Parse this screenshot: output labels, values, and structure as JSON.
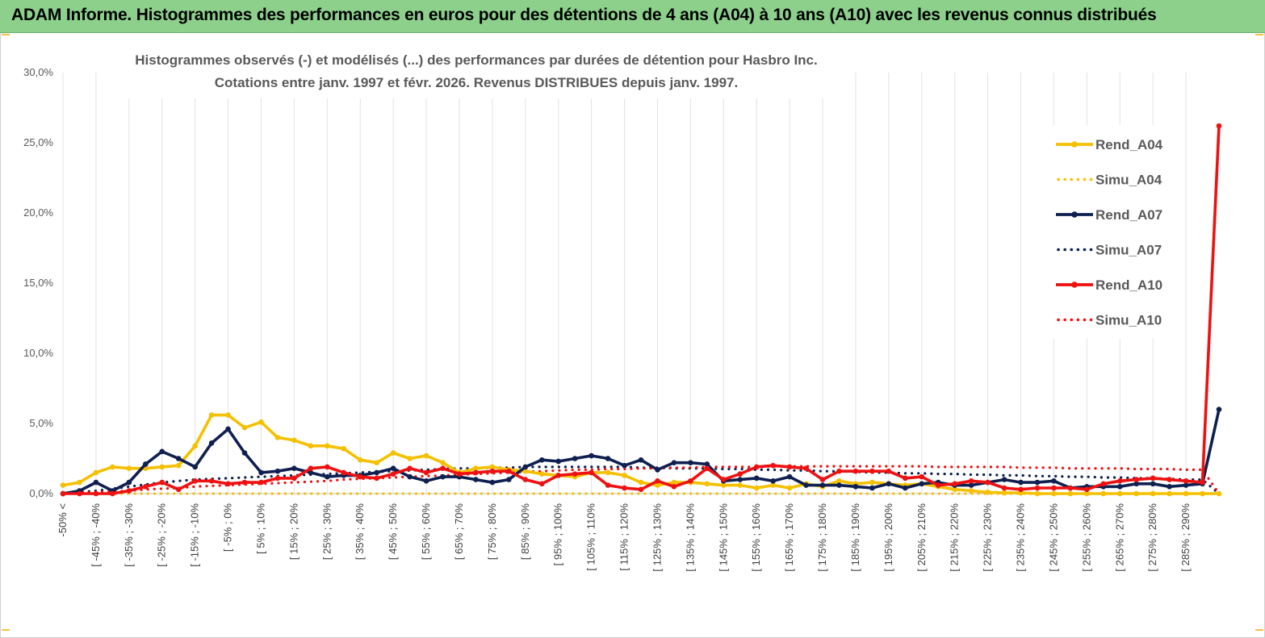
{
  "banner": {
    "title": "ADAM Informe. Histogrammes des performances en euros pour des détentions de 4 ans (A04) à 10 ans (A10) avec les revenus connus distribués"
  },
  "chart_data": {
    "type": "line",
    "title_lines": [
      "Histogrammes observés (-) et modélisés (...)  des performances par durées de détention pour Hasbro Inc.",
      "Cotations entre janv. 1997 et févr. 2026. Revenus DISTRIBUES depuis janv. 1997."
    ],
    "xlabel": "",
    "ylabel": "",
    "ylim": [
      0,
      30
    ],
    "y_ticks": [
      "0,0%",
      "5,0%",
      "10,0%",
      "15,0%",
      "20,0%",
      "25,0%",
      "30,0%"
    ],
    "grid": "vertical",
    "legend_position": "right",
    "x_labels_shown": [
      "-50% <",
      "[ -45% ; -40%",
      "[ -35% ; -30%",
      "[ -25% ; -20%",
      "[ -15% ; -10%",
      "[ -5% ; 0%",
      "[ 5% ; 10%",
      "[ 15% ; 20%",
      "[ 25% ; 30%",
      "[ 35% ; 40%",
      "[ 45% ; 50%",
      "[ 55% ; 60%",
      "[ 65% ; 70%",
      "[ 75% ; 80%",
      "[ 85% ; 90%",
      "[ 95% ; 100%",
      "[ 105% ; 110%",
      "[ 115% ; 120%",
      "[ 125% ; 130%",
      "[ 135% ; 140%",
      "[ 145% ; 150%",
      "[ 155% ; 160%",
      "[ 165% ; 170%",
      "[ 175% ; 180%",
      "[ 185% ; 190%",
      "[ 195% ; 200%",
      "[ 205% ; 210%",
      "[ 215% ; 220%",
      "[ 225% ; 230%",
      "[ 235% ; 240%",
      "[ 245% ; 250%",
      "[ 255% ; 260%",
      "[ 265% ; 270%",
      "[ 275% ; 280%",
      "[ 285% ; 290%"
    ],
    "series": [
      {
        "name": "Rend_A04",
        "color": "#f5c000",
        "style": "solid",
        "values": [
          0.6,
          0.8,
          1.5,
          1.9,
          1.8,
          1.8,
          1.9,
          2.0,
          3.4,
          5.6,
          5.6,
          4.7,
          5.1,
          4.0,
          3.8,
          3.4,
          3.4,
          3.2,
          2.4,
          2.2,
          2.9,
          2.5,
          2.7,
          2.2,
          1.5,
          1.8,
          1.9,
          1.7,
          1.6,
          1.4,
          1.3,
          1.2,
          1.5,
          1.5,
          1.3,
          0.8,
          0.6,
          0.8,
          0.8,
          0.7,
          0.6,
          0.6,
          0.4,
          0.6,
          0.4,
          0.7,
          0.5,
          0.9,
          0.7,
          0.8,
          0.7,
          0.6,
          0.7,
          0.5,
          0.3,
          0.2,
          0.1,
          0.05,
          0.05,
          0.0,
          0.0,
          0.0,
          0.0,
          0.0,
          0.0,
          0.0,
          0.0,
          0.0,
          0.0,
          0.0,
          0.0
        ]
      },
      {
        "name": "Simu_A04",
        "color": "#f5c000",
        "style": "dotted",
        "values": [
          0.0,
          0.0,
          0.0,
          0.0,
          0.0,
          0.0,
          0.0,
          0.0,
          0.0,
          0.0,
          0.0,
          0.0,
          0.0,
          0.0,
          0.0,
          0.0,
          0.0,
          0.0,
          0.0,
          0.0,
          0.0,
          0.0,
          0.0,
          0.0,
          0.0,
          0.0,
          0.0,
          0.0,
          0.0,
          0.0,
          0.0,
          0.0,
          0.0,
          0.0,
          0.0,
          0.0,
          0.0,
          0.0,
          0.0,
          0.0,
          0.0,
          0.0,
          0.0,
          0.0,
          0.0,
          0.0,
          0.0,
          0.0,
          0.0,
          0.0,
          0.0,
          0.0,
          0.0,
          0.0,
          0.0,
          0.0,
          0.0,
          0.0,
          0.0,
          0.0,
          0.0,
          0.0,
          0.0,
          0.0,
          0.0,
          0.0,
          0.0,
          0.0,
          0.0,
          0.0,
          0.0
        ]
      },
      {
        "name": "Rend_A07",
        "color": "#0f2050",
        "style": "solid",
        "values": [
          0.0,
          0.2,
          0.8,
          0.2,
          0.8,
          2.1,
          3.0,
          2.5,
          1.9,
          3.6,
          4.6,
          2.9,
          1.5,
          1.6,
          1.8,
          1.5,
          1.2,
          1.3,
          1.3,
          1.5,
          1.8,
          1.2,
          0.9,
          1.2,
          1.2,
          1.0,
          0.8,
          1.0,
          1.9,
          2.4,
          2.3,
          2.5,
          2.7,
          2.5,
          2.0,
          2.4,
          1.7,
          2.2,
          2.2,
          2.1,
          0.9,
          1.0,
          1.1,
          0.9,
          1.2,
          0.6,
          0.6,
          0.6,
          0.5,
          0.4,
          0.7,
          0.4,
          0.7,
          0.8,
          0.6,
          0.6,
          0.8,
          1.0,
          0.8,
          0.8,
          0.9,
          0.4,
          0.5,
          0.5,
          0.5,
          0.7,
          0.7,
          0.5,
          0.6,
          0.7,
          6.0
        ]
      },
      {
        "name": "Simu_A07",
        "color": "#0f2050",
        "style": "dotted",
        "values": [
          0.0,
          0.1,
          0.2,
          0.35,
          0.5,
          0.65,
          0.8,
          0.9,
          1.0,
          1.05,
          1.1,
          1.15,
          1.2,
          1.25,
          1.3,
          1.35,
          1.4,
          1.45,
          1.5,
          1.55,
          1.6,
          1.65,
          1.7,
          1.75,
          1.8,
          1.8,
          1.85,
          1.85,
          1.9,
          1.9,
          1.9,
          1.9,
          1.9,
          1.9,
          1.9,
          1.85,
          1.85,
          1.8,
          1.8,
          1.8,
          1.75,
          1.75,
          1.7,
          1.7,
          1.65,
          1.65,
          1.6,
          1.6,
          1.55,
          1.5,
          1.5,
          1.45,
          1.45,
          1.4,
          1.4,
          1.35,
          1.35,
          1.3,
          1.3,
          1.25,
          1.25,
          1.2,
          1.2,
          1.15,
          1.15,
          1.1,
          1.1,
          1.05,
          1.0,
          1.0,
          0.0
        ]
      },
      {
        "name": "Rend_A10",
        "color": "#ee1111",
        "style": "solid",
        "values": [
          0.0,
          0.0,
          0.0,
          0.0,
          0.2,
          0.5,
          0.8,
          0.3,
          0.9,
          0.9,
          0.7,
          0.8,
          0.8,
          1.1,
          1.1,
          1.8,
          1.9,
          1.5,
          1.2,
          1.1,
          1.4,
          1.8,
          1.5,
          1.8,
          1.4,
          1.5,
          1.6,
          1.6,
          1.0,
          0.7,
          1.3,
          1.4,
          1.5,
          0.6,
          0.4,
          0.3,
          0.9,
          0.5,
          0.9,
          1.8,
          1.0,
          1.4,
          1.9,
          2.0,
          1.9,
          1.8,
          1.0,
          1.6,
          1.6,
          1.6,
          1.6,
          1.1,
          1.2,
          0.6,
          0.7,
          0.9,
          0.8,
          0.4,
          0.3,
          0.4,
          0.4,
          0.4,
          0.3,
          0.7,
          0.9,
          1.0,
          1.1,
          1.0,
          0.9,
          0.8,
          26.2
        ]
      },
      {
        "name": "Simu_A10",
        "color": "#ee1111",
        "style": "dotted",
        "values": [
          0.0,
          0.05,
          0.1,
          0.15,
          0.2,
          0.3,
          0.35,
          0.4,
          0.5,
          0.55,
          0.6,
          0.65,
          0.7,
          0.75,
          0.8,
          0.85,
          0.9,
          1.0,
          1.05,
          1.1,
          1.15,
          1.2,
          1.25,
          1.3,
          1.35,
          1.4,
          1.45,
          1.5,
          1.55,
          1.6,
          1.65,
          1.7,
          1.7,
          1.75,
          1.75,
          1.8,
          1.8,
          1.85,
          1.85,
          1.9,
          1.9,
          1.9,
          1.9,
          1.95,
          1.95,
          1.95,
          1.95,
          1.95,
          1.95,
          1.95,
          1.95,
          1.95,
          1.95,
          1.9,
          1.9,
          1.9,
          1.9,
          1.9,
          1.85,
          1.85,
          1.85,
          1.8,
          1.8,
          1.8,
          1.8,
          1.75,
          1.75,
          1.75,
          1.7,
          1.7,
          0.0
        ]
      }
    ]
  }
}
